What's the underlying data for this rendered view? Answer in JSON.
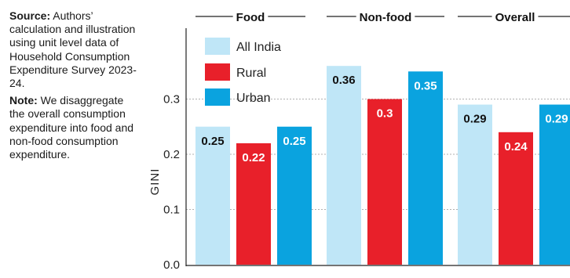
{
  "notes": {
    "source_label": "Source:",
    "source_text": "Authors’ calculation and illustration using unit level data of Household Consumption Expenditure Survey 2023-24.",
    "note_label": "Note:",
    "note_text": "We disaggregate the overall consumption expenditure into food and non-food consumption expenditure."
  },
  "chart_data": {
    "type": "bar",
    "title": "",
    "xlabel": "",
    "ylabel": "GINI",
    "ylim": [
      0,
      0.4
    ],
    "yticks": [
      "0.0",
      "0.1",
      "0.2",
      "0.3"
    ],
    "categories": [
      "Food",
      "Non-food",
      "Overall"
    ],
    "series": [
      {
        "name": "All India",
        "color": "#bfe6f7",
        "label_color": "#111111",
        "values": [
          0.25,
          0.36,
          0.29
        ]
      },
      {
        "name": "Rural",
        "color": "#e8202a",
        "label_color": "#ffffff",
        "values": [
          0.22,
          0.3,
          0.24
        ]
      },
      {
        "name": "Urban",
        "color": "#0aa3df",
        "label_color": "#ffffff",
        "values": [
          0.25,
          0.35,
          0.29
        ]
      }
    ],
    "legend": {
      "placement": "top-left"
    },
    "grid": {
      "y": true,
      "style": "dotted",
      "color": "#b0b0b0"
    }
  }
}
